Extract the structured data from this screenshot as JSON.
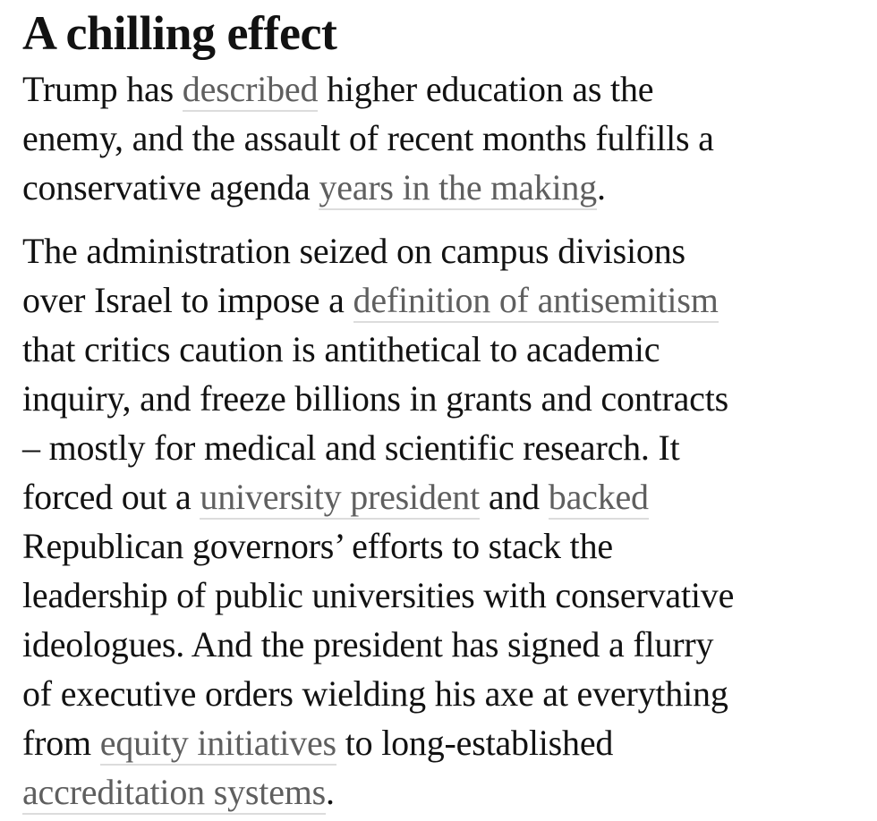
{
  "colors": {
    "page_background": "#ffffff",
    "text": "#121212",
    "link": "#5f5f5f",
    "link_underline": "#dcdcdc"
  },
  "article": {
    "heading": "A chilling effect",
    "paragraphs": [
      {
        "lines": [
          [
            {
              "text": "Trump has "
            },
            {
              "text": "described",
              "link": "link-described"
            },
            {
              "text": " higher education as the"
            }
          ],
          [
            {
              "text": "enemy, and the assault of recent months fulfills a"
            }
          ],
          [
            {
              "text": "conservative agenda "
            },
            {
              "text": "years in the making",
              "link": "link-years-in-the-making"
            },
            {
              "text": "."
            }
          ]
        ]
      },
      {
        "lines": [
          [
            {
              "text": "The administration seized on campus divisions"
            }
          ],
          [
            {
              "text": "over Israel to impose a "
            },
            {
              "text": "definition of antisemitism",
              "link": "link-definition-of-antisemitism"
            }
          ],
          [
            {
              "text": "that critics caution is antithetical to academic"
            }
          ],
          [
            {
              "text": "inquiry, and freeze billions in grants and contracts"
            }
          ],
          [
            {
              "text": "– mostly for medical and scientific research. It"
            }
          ],
          [
            {
              "text": "forced out a "
            },
            {
              "text": "university president",
              "link": "link-university-president"
            },
            {
              "text": " and "
            },
            {
              "text": "backed",
              "link": "link-backed"
            }
          ],
          [
            {
              "text": "Republican governors’ efforts to stack the"
            }
          ],
          [
            {
              "text": "leadership of public universities with conservative"
            }
          ],
          [
            {
              "text": "ideologues. And the president has signed a flurry"
            }
          ],
          [
            {
              "text": "of executive orders wielding his axe at everything"
            }
          ],
          [
            {
              "text": "from "
            },
            {
              "text": "equity initiatives",
              "link": "link-equity-initiatives"
            },
            {
              "text": " to long-established"
            }
          ],
          [
            {
              "text": "accreditation systems",
              "link": "link-accreditation-systems"
            },
            {
              "text": "."
            }
          ]
        ]
      }
    ]
  }
}
